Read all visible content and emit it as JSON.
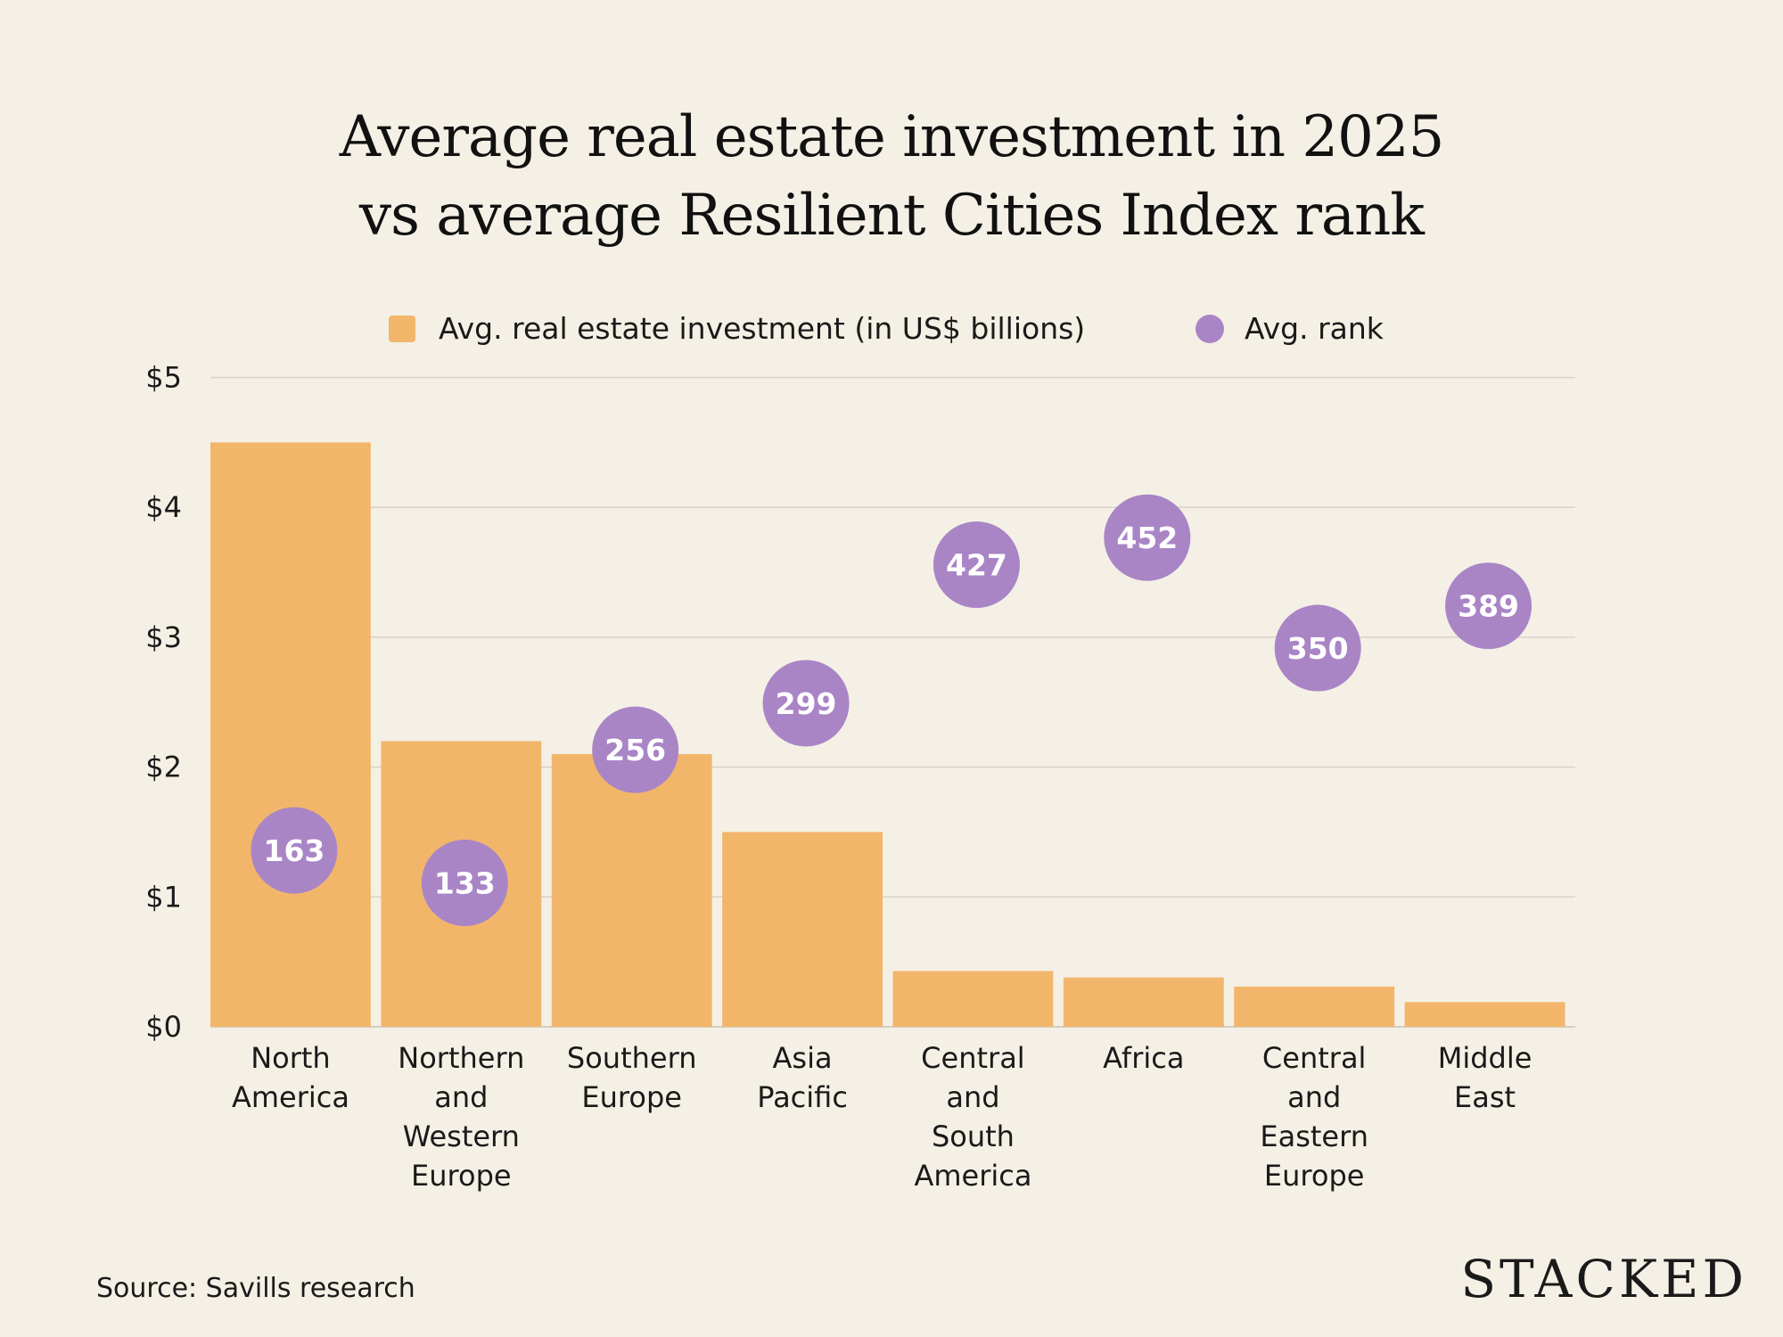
{
  "chart_data": {
    "type": "bar",
    "title": [
      "Average real estate investment in 2025",
      "vs average Resilient Cities Index rank"
    ],
    "categories": [
      [
        "North",
        "America"
      ],
      [
        "Northern",
        "and",
        "Western",
        "Europe"
      ],
      [
        "Southern",
        "Europe"
      ],
      [
        "Asia",
        "Pacific"
      ],
      [
        "Central",
        "and",
        "South",
        "America"
      ],
      [
        "Africa"
      ],
      [
        "Central",
        "and",
        "Eastern",
        "Europe"
      ],
      [
        "Middle",
        "East"
      ]
    ],
    "series": [
      {
        "name": "Avg. real estate investment (in US$ billions)",
        "type": "bar",
        "color": "#f2b66b",
        "values": [
          4.5,
          2.2,
          2.1,
          1.5,
          0.43,
          0.38,
          0.31,
          0.19
        ]
      },
      {
        "name": "Avg. rank",
        "type": "scatter",
        "color": "#a985c6",
        "values": [
          163,
          133,
          256,
          299,
          427,
          452,
          350,
          389
        ]
      }
    ],
    "ylim": [
      0,
      5
    ],
    "y2lim": [
      0,
      600
    ],
    "yticks": [
      "$0",
      "$1",
      "$2",
      "$3",
      "$4",
      "$5"
    ],
    "grid": true,
    "legend": "top-center",
    "source": "Source: Savills research",
    "logo": "STACKED"
  }
}
